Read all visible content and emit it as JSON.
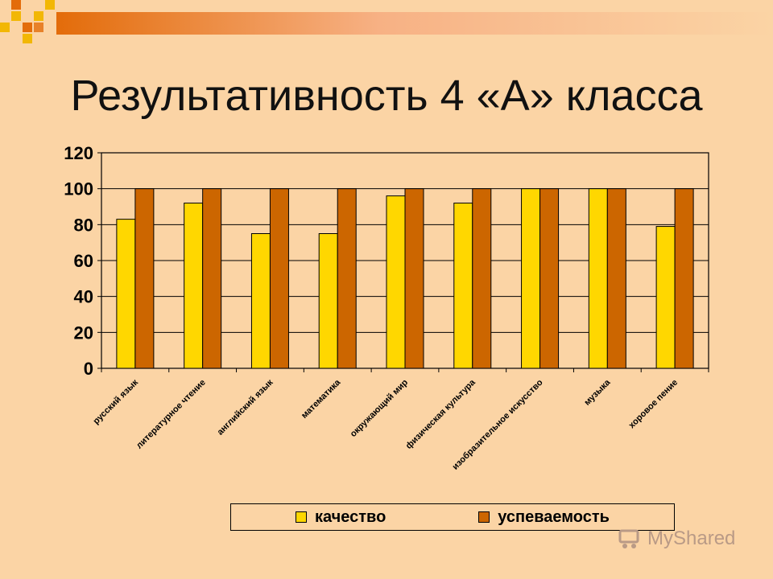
{
  "slide": {
    "title": "Результативность 4 «А» класса",
    "watermark": "MyShared"
  },
  "colors": {
    "background": "#FBD4A5",
    "quality": "#FFD700",
    "performance": "#CC6600",
    "decor_orange": "#E36C0A",
    "decor_gold": "#F2B705"
  },
  "chart_data": {
    "type": "bar",
    "categories": [
      "русский язык",
      "литературное чтение",
      "английский язык",
      "математика",
      "окружающий мир",
      "физическая культура",
      "изобразительное искусство",
      "музыка",
      "хоровое пение"
    ],
    "series": [
      {
        "name": "качество",
        "color": "#FFD700",
        "values": [
          83,
          92,
          75,
          75,
          96,
          92,
          100,
          100,
          79
        ]
      },
      {
        "name": "успеваемость",
        "color": "#CC6600",
        "values": [
          100,
          100,
          100,
          100,
          100,
          100,
          100,
          100,
          100
        ]
      }
    ],
    "ylim": [
      0,
      120
    ],
    "yticks": [
      0,
      20,
      40,
      60,
      80,
      100,
      120
    ],
    "grid": true,
    "legend": "bottom"
  }
}
